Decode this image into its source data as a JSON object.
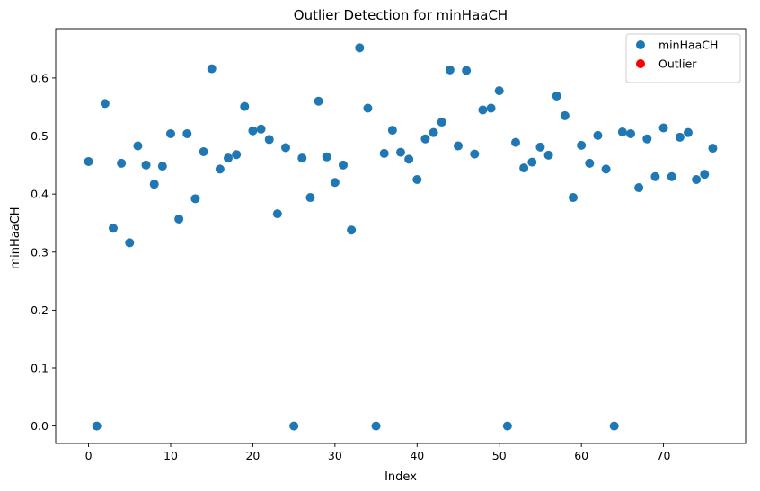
{
  "chart_data": {
    "type": "scatter",
    "title": "Outlier Detection for minHaaCH",
    "xlabel": "Index",
    "ylabel": "minHaaCH",
    "xlim": [
      -4,
      80
    ],
    "ylim": [
      -0.03,
      0.685
    ],
    "xticks": [
      0,
      10,
      20,
      30,
      40,
      50,
      60,
      70
    ],
    "yticks": [
      0.0,
      0.1,
      0.2,
      0.3,
      0.4,
      0.5,
      0.6
    ],
    "grid": false,
    "legend_position": "top-right",
    "series": [
      {
        "name": "minHaaCH",
        "color": "#1f77b4",
        "x": [
          0,
          1,
          2,
          3,
          4,
          5,
          6,
          7,
          8,
          9,
          10,
          11,
          12,
          13,
          14,
          15,
          16,
          17,
          18,
          19,
          20,
          21,
          22,
          23,
          24,
          25,
          26,
          27,
          28,
          29,
          30,
          31,
          32,
          33,
          34,
          35,
          36,
          37,
          38,
          39,
          40,
          41,
          42,
          43,
          44,
          45,
          46,
          47,
          48,
          49,
          50,
          51,
          52,
          53,
          54,
          55,
          56,
          57,
          58,
          59,
          60,
          61,
          62,
          63,
          64,
          65,
          66,
          67,
          68,
          69,
          70,
          71,
          72,
          73,
          74,
          75,
          76
        ],
        "y": [
          0.456,
          0.0,
          0.556,
          0.341,
          0.453,
          0.316,
          0.483,
          0.45,
          0.417,
          0.448,
          0.504,
          0.357,
          0.504,
          0.392,
          0.473,
          0.616,
          0.443,
          0.462,
          0.468,
          0.551,
          0.509,
          0.512,
          0.494,
          0.366,
          0.48,
          0.0,
          0.462,
          0.394,
          0.56,
          0.464,
          0.42,
          0.45,
          0.338,
          0.652,
          0.548,
          0.0,
          0.47,
          0.51,
          0.472,
          0.46,
          0.425,
          0.495,
          0.506,
          0.524,
          0.614,
          0.483,
          0.613,
          0.469,
          0.545,
          0.548,
          0.578,
          0.0,
          0.489,
          0.445,
          0.455,
          0.481,
          0.467,
          0.569,
          0.535,
          0.394,
          0.484,
          0.453,
          0.501,
          0.443,
          0.0,
          0.507,
          0.504,
          0.411,
          0.495,
          0.43,
          0.514,
          0.43,
          0.498,
          0.506,
          0.425,
          0.434,
          0.479
        ]
      },
      {
        "name": "Outlier",
        "color": "#ff0000",
        "x": [],
        "y": []
      }
    ]
  }
}
